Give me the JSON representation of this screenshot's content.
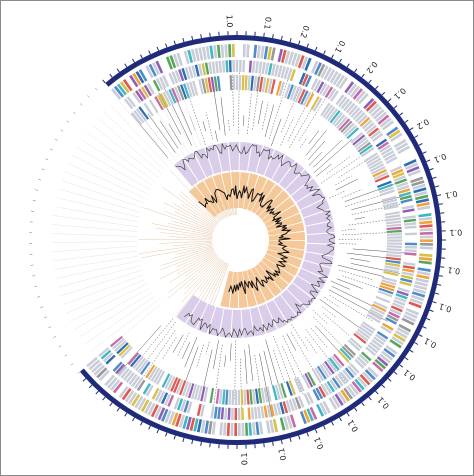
{
  "figure": {
    "scale_labels": [
      "1.0",
      "0.1",
      "0.2",
      "0.1",
      "0.2",
      "0.1",
      "0.2",
      "0.1",
      "0.1",
      "0.1",
      "0.1",
      "0.1",
      "0.1",
      "0.1",
      "0.1",
      "0.1",
      "0.1",
      "0.1",
      "0.1"
    ],
    "colors": {
      "scale_ring": "#1f2b7a",
      "outer_band": "#d9cdea",
      "inner_band": "#f4c898",
      "leaf_line": "#555555",
      "gene_palette": [
        "#4f8bc9",
        "#e0584f",
        "#58a65c",
        "#f0a33a",
        "#8e5fb5",
        "#3fb8c4",
        "#d8c14b",
        "#999999",
        "#c76aa8",
        "#2f6db3"
      ]
    }
  }
}
